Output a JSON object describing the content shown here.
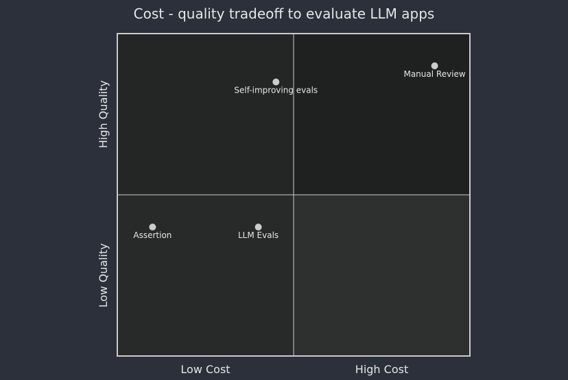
{
  "chart_data": {
    "type": "scatter",
    "subtype": "quadrant",
    "title": "Cost - quality tradeoff to evaluate LLM apps",
    "x_axis": {
      "low": "Low Cost",
      "high": "High Cost"
    },
    "y_axis": {
      "low": "Low Quality",
      "high": "High Quality"
    },
    "xlim": [
      0,
      1
    ],
    "ylim": [
      0,
      1
    ],
    "grid": false,
    "quadrant_colors": {
      "top_right": "#1f2020",
      "top_left": "#242525",
      "bottom_left": "#282929",
      "bottom_right": "#2e2f2f"
    },
    "points": [
      {
        "label": "Self-improving evals",
        "x": 0.45,
        "y": 0.85
      },
      {
        "label": "Manual Review",
        "x": 0.9,
        "y": 0.9
      },
      {
        "label": "Assertion",
        "x": 0.1,
        "y": 0.4
      },
      {
        "label": "LLM Evals",
        "x": 0.4,
        "y": 0.4
      }
    ],
    "colors": {
      "background": "#2b303b",
      "border": "#cccccc",
      "point": "#cccccc",
      "text": "#e6e6e6"
    }
  }
}
